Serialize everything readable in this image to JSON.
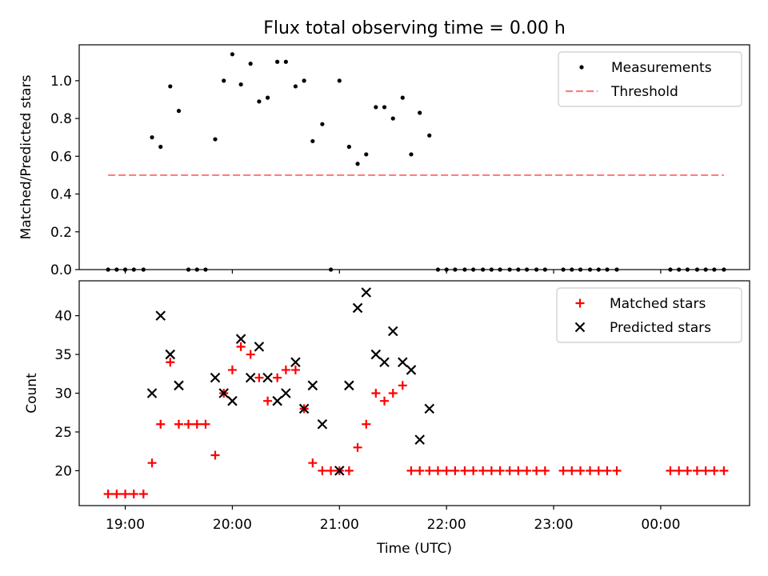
{
  "chart_data": [
    {
      "type": "scatter",
      "title": "Flux total observing time = 0.00 h",
      "xlabel": "",
      "ylabel": "Matched/Predicted stars",
      "ylim": [
        0,
        1.19
      ],
      "yticks": [
        "0.0",
        "0.2",
        "0.4",
        "0.6",
        "0.8",
        "1.0"
      ],
      "xlim": [
        18.57,
        24.83
      ],
      "legend_position": "top-right",
      "series": [
        {
          "name": "Measurements",
          "marker": "dot",
          "color": "#000000",
          "x": [
            18.84,
            18.92,
            19.0,
            19.08,
            19.17,
            19.25,
            19.33,
            19.42,
            19.5,
            19.59,
            19.67,
            19.75,
            19.84,
            19.92,
            20.0,
            20.08,
            20.17,
            20.25,
            20.33,
            20.42,
            20.5,
            20.59,
            20.67,
            20.75,
            20.84,
            20.92,
            21.0,
            21.09,
            21.17,
            21.25,
            21.34,
            21.42,
            21.5,
            21.59,
            21.67,
            21.75,
            21.84,
            21.92,
            22.0,
            22.08,
            22.17,
            22.25,
            22.34,
            22.42,
            22.5,
            22.59,
            22.67,
            22.75,
            22.84,
            22.92,
            23.09,
            23.17,
            23.25,
            23.34,
            23.42,
            23.5,
            23.59,
            24.09,
            24.17,
            24.25,
            24.34,
            24.42,
            24.5,
            24.59
          ],
          "y": [
            0,
            0,
            0,
            0,
            0,
            0.7,
            0.65,
            0.97,
            0.84,
            0,
            0,
            0,
            0.69,
            1.0,
            1.14,
            0.98,
            1.09,
            0.89,
            0.91,
            1.1,
            1.1,
            0.97,
            1.0,
            0.68,
            0.77,
            0,
            1.0,
            0.65,
            0.56,
            0.61,
            0.86,
            0.86,
            0.8,
            0.91,
            0.61,
            0.83,
            0.71,
            0,
            0,
            0,
            0,
            0,
            0,
            0,
            0,
            0,
            0,
            0,
            0,
            0,
            0,
            0,
            0,
            0,
            0,
            0,
            0,
            0,
            0,
            0,
            0,
            0,
            0,
            0
          ]
        },
        {
          "name": "Threshold",
          "style": "dashed",
          "color": "#ff7f7f",
          "x": [
            18.84,
            24.59
          ],
          "y": [
            0.5,
            0.5
          ]
        }
      ]
    },
    {
      "type": "scatter",
      "title": "",
      "xlabel": "Time (UTC)",
      "ylabel": "Count",
      "ylim": [
        15.5,
        44.5
      ],
      "yticks": [
        "20",
        "25",
        "30",
        "35",
        "40"
      ],
      "xlim": [
        18.57,
        24.83
      ],
      "xticks": [
        "19:00",
        "20:00",
        "21:00",
        "22:00",
        "23:00",
        "00:00"
      ],
      "legend_position": "top-right",
      "series": [
        {
          "name": "Matched stars",
          "marker": "plus",
          "color": "#ff0000",
          "x": [
            18.84,
            18.92,
            19.0,
            19.08,
            19.17,
            19.25,
            19.33,
            19.42,
            19.5,
            19.59,
            19.67,
            19.75,
            19.84,
            19.92,
            20.0,
            20.08,
            20.17,
            20.25,
            20.33,
            20.42,
            20.5,
            20.59,
            20.67,
            20.75,
            20.84,
            20.92,
            21.0,
            21.09,
            21.17,
            21.25,
            21.34,
            21.42,
            21.5,
            21.59,
            21.67,
            21.75,
            21.84,
            21.92,
            22.0,
            22.08,
            22.17,
            22.25,
            22.34,
            22.42,
            22.5,
            22.59,
            22.67,
            22.75,
            22.84,
            22.92,
            23.09,
            23.17,
            23.25,
            23.34,
            23.42,
            23.5,
            23.59,
            24.09,
            24.17,
            24.25,
            24.34,
            24.42,
            24.5,
            24.59
          ],
          "y": [
            17,
            17,
            17,
            17,
            17,
            21,
            26,
            34,
            26,
            26,
            26,
            26,
            22,
            30,
            33,
            36,
            35,
            32,
            29,
            32,
            33,
            33,
            28,
            21,
            20,
            20,
            20,
            20,
            23,
            26,
            30,
            29,
            30,
            31,
            20,
            20,
            20,
            20,
            20,
            20,
            20,
            20,
            20,
            20,
            20,
            20,
            20,
            20,
            20,
            20,
            20,
            20,
            20,
            20,
            20,
            20,
            20,
            20,
            20,
            20,
            20,
            20,
            20,
            20
          ]
        },
        {
          "name": "Predicted stars",
          "marker": "x",
          "color": "#000000",
          "x": [
            19.25,
            19.33,
            19.42,
            19.5,
            19.84,
            19.92,
            20.0,
            20.08,
            20.17,
            20.25,
            20.33,
            20.42,
            20.5,
            20.59,
            20.67,
            20.75,
            20.84,
            21.0,
            21.09,
            21.17,
            21.25,
            21.34,
            21.42,
            21.5,
            21.59,
            21.67,
            21.75,
            21.84
          ],
          "y": [
            30,
            40,
            35,
            31,
            32,
            30,
            29,
            37,
            32,
            36,
            32,
            29,
            30,
            34,
            28,
            31,
            26,
            20,
            31,
            41,
            43,
            35,
            34,
            38,
            34,
            33,
            24,
            28
          ]
        }
      ]
    }
  ]
}
